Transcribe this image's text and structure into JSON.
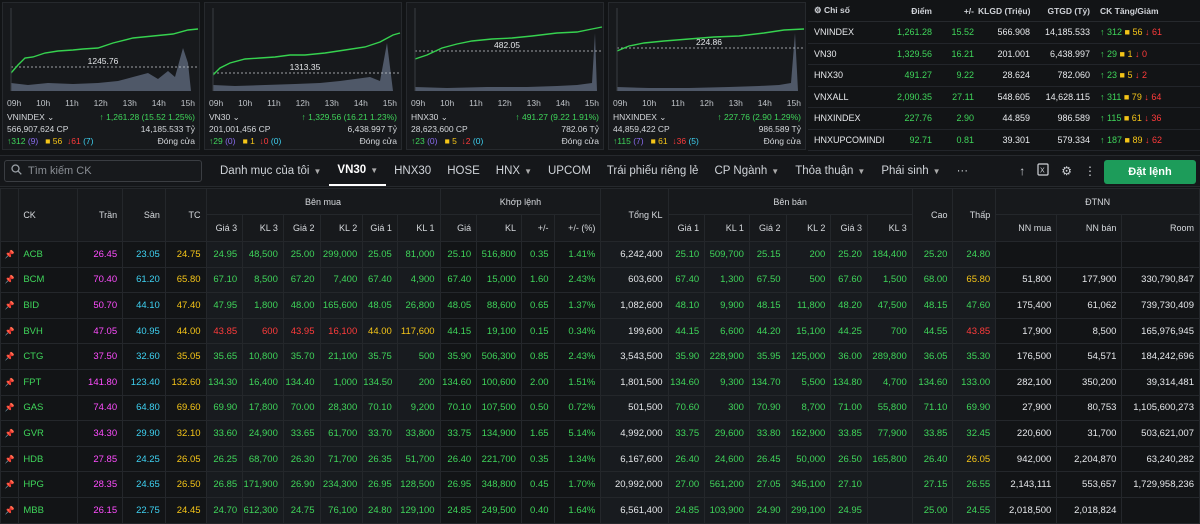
{
  "charts": [
    {
      "ref": "1245.76",
      "index_name": "VNINDEX",
      "change_text": "1,261.28 (15.52 1.25%)",
      "volume": "566,907,624 CP",
      "value": "14,185.533 Tỷ",
      "up": "312",
      "ceil": "9",
      "flat": "56",
      "down": "61",
      "floor": "7",
      "status": "Đóng cửa",
      "times": [
        "09h",
        "10h",
        "11h",
        "12h",
        "13h",
        "14h",
        "15h"
      ]
    },
    {
      "ref": "1313.35",
      "index_name": "VN30",
      "change_text": "1,329.56 (16.21 1.23%)",
      "volume": "201,001,456 CP",
      "value": "6,438.997 Tỷ",
      "up": "29",
      "ceil": "0",
      "flat": "1",
      "down": "0",
      "floor": "0",
      "status": "Đóng cửa",
      "times": [
        "09h",
        "10h",
        "11h",
        "12h",
        "13h",
        "14h",
        "15h"
      ]
    },
    {
      "ref": "482.05",
      "index_name": "HNX30",
      "change_text": "491.27 (9.22 1.91%)",
      "volume": "28,623,600 CP",
      "value": "782.06 Tỷ",
      "up": "23",
      "ceil": "0",
      "flat": "5",
      "down": "2",
      "floor": "0",
      "status": "Đóng cửa",
      "times": [
        "09h",
        "10h",
        "11h",
        "12h",
        "13h",
        "14h",
        "15h"
      ]
    },
    {
      "ref": "224.86",
      "index_name": "HNXINDEX",
      "change_text": "227.76 (2.90 1.29%)",
      "volume": "44,859,422 CP",
      "value": "986.589 Tỷ",
      "up": "115",
      "ceil": "7",
      "flat": "61",
      "down": "36",
      "floor": "5",
      "status": "Đóng cửa",
      "times": [
        "09h",
        "10h",
        "11h",
        "12h",
        "13h",
        "14h",
        "15h"
      ]
    }
  ],
  "index_table": {
    "headers": [
      "Chỉ số",
      "Điểm",
      "+/-",
      "KLGD (Triệu)",
      "GTGD (Tỷ)",
      "CK Tăng/Giảm"
    ],
    "rows": [
      {
        "name": "VNINDEX",
        "point": "1,261.28",
        "change": "15.52",
        "vol": "566.908",
        "val": "14,185.533",
        "up": "312",
        "flat": "56",
        "down": "61"
      },
      {
        "name": "VN30",
        "point": "1,329.56",
        "change": "16.21",
        "vol": "201.001",
        "val": "6,438.997",
        "up": "29",
        "flat": "1",
        "down": "0"
      },
      {
        "name": "HNX30",
        "point": "491.27",
        "change": "9.22",
        "vol": "28.624",
        "val": "782.060",
        "up": "23",
        "flat": "5",
        "down": "2"
      },
      {
        "name": "VNXALL",
        "point": "2,090.35",
        "change": "27.11",
        "vol": "548.605",
        "val": "14,628.115",
        "up": "311",
        "flat": "79",
        "down": "64"
      },
      {
        "name": "HNXINDEX",
        "point": "227.76",
        "change": "2.90",
        "vol": "44.859",
        "val": "986.589",
        "up": "115",
        "flat": "61",
        "down": "36"
      },
      {
        "name": "HNXUPCOMINDI",
        "point": "92.71",
        "change": "0.81",
        "vol": "39.301",
        "val": "579.334",
        "up": "187",
        "flat": "89",
        "down": "62"
      }
    ]
  },
  "toolbar": {
    "search_placeholder": "Tìm kiếm CK",
    "tabs": [
      {
        "label": "Danh mục của tôi",
        "chev": "⌄"
      },
      {
        "label": "VN30",
        "chev": "⌄"
      },
      {
        "label": "HNX30",
        "chev": ""
      },
      {
        "label": "HOSE",
        "chev": ""
      },
      {
        "label": "HNX",
        "chev": "⌄"
      },
      {
        "label": "UPCOM",
        "chev": ""
      },
      {
        "label": "Trái phiếu riêng lẻ",
        "chev": ""
      },
      {
        "label": "CP Ngành",
        "chev": "⌄"
      },
      {
        "label": "Thỏa thuận",
        "chev": "⌄"
      },
      {
        "label": "Phái sinh",
        "chev": "⌄"
      },
      {
        "label": "···",
        "chev": ""
      }
    ],
    "order_button": "Đặt lệnh"
  },
  "board": {
    "group_headers": {
      "ck": "CK",
      "tran": "Trần",
      "san": "Sàn",
      "tc": "TC",
      "ben_mua": "Bên mua",
      "khop_lenh": "Khớp lệnh",
      "tong_kl": "Tổng KL",
      "ben_ban": "Bên bán",
      "cao": "Cao",
      "thap": "Thấp",
      "dtnn": "ĐTNN"
    },
    "sub_headers": [
      "Giá 3",
      "KL 3",
      "Giá 2",
      "KL 2",
      "Giá 1",
      "KL 1",
      "Giá",
      "KL",
      "+/-",
      "+/- (%)",
      "Giá 1",
      "KL 1",
      "Giá 2",
      "KL 2",
      "Giá 3",
      "KL 3",
      "NN mua",
      "NN bán",
      "Room"
    ],
    "rows": [
      [
        "ACB",
        "26.45",
        "23.05",
        "24.75",
        "24.95",
        "48,500",
        "25.00",
        "299,000",
        "25.05",
        "81,000",
        "25.10",
        "516,800",
        "0.35",
        "1.41%",
        "6,242,400",
        "25.10",
        "509,700",
        "25.15",
        "200",
        "25.20",
        "184,400",
        "25.20",
        "24.80",
        "",
        "",
        ""
      ],
      [
        "BCM",
        "70.40",
        "61.20",
        "65.80",
        "67.10",
        "8,500",
        "67.20",
        "7,400",
        "67.40",
        "4,900",
        "67.40",
        "15,000",
        "1.60",
        "2.43%",
        "603,600",
        "67.40",
        "1,300",
        "67.50",
        "500",
        "67.60",
        "1,500",
        "68.00",
        "65.80",
        "51,800",
        "177,900",
        "330,790,847"
      ],
      [
        "BID",
        "50.70",
        "44.10",
        "47.40",
        "47.95",
        "1,800",
        "48.00",
        "165,600",
        "48.05",
        "26,800",
        "48.05",
        "88,600",
        "0.65",
        "1.37%",
        "1,082,600",
        "48.10",
        "9,900",
        "48.15",
        "11,800",
        "48.20",
        "47,500",
        "48.15",
        "47.60",
        "175,400",
        "61,062",
        "739,730,409"
      ],
      [
        "BVH",
        "47.05",
        "40.95",
        "44.00",
        "43.85",
        "600",
        "43.95",
        "16,100",
        "44.00",
        "117,600",
        "44.15",
        "19,100",
        "0.15",
        "0.34%",
        "199,600",
        "44.15",
        "6,600",
        "44.20",
        "15,100",
        "44.25",
        "700",
        "44.55",
        "43.85",
        "17,900",
        "8,500",
        "165,976,945"
      ],
      [
        "CTG",
        "37.50",
        "32.60",
        "35.05",
        "35.65",
        "10,800",
        "35.70",
        "21,100",
        "35.75",
        "500",
        "35.90",
        "506,300",
        "0.85",
        "2.43%",
        "3,543,500",
        "35.90",
        "228,900",
        "35.95",
        "125,000",
        "36.00",
        "289,800",
        "36.05",
        "35.30",
        "176,500",
        "54,571",
        "184,242,696"
      ],
      [
        "FPT",
        "141.80",
        "123.40",
        "132.60",
        "134.30",
        "16,400",
        "134.40",
        "1,000",
        "134.50",
        "200",
        "134.60",
        "100,600",
        "2.00",
        "1.51%",
        "1,801,500",
        "134.60",
        "9,300",
        "134.70",
        "5,500",
        "134.80",
        "4,700",
        "134.60",
        "133.00",
        "282,100",
        "350,200",
        "39,314,481"
      ],
      [
        "GAS",
        "74.40",
        "64.80",
        "69.60",
        "69.90",
        "17,800",
        "70.00",
        "28,300",
        "70.10",
        "9,200",
        "70.10",
        "107,500",
        "0.50",
        "0.72%",
        "501,500",
        "70.60",
        "300",
        "70.90",
        "8,700",
        "71.00",
        "55,800",
        "71.10",
        "69.90",
        "27,900",
        "80,753",
        "1,105,600,273"
      ],
      [
        "GVR",
        "34.30",
        "29.90",
        "32.10",
        "33.60",
        "24,900",
        "33.65",
        "61,700",
        "33.70",
        "33,800",
        "33.75",
        "134,900",
        "1.65",
        "5.14%",
        "4,992,000",
        "33.75",
        "29,600",
        "33.80",
        "162,900",
        "33.85",
        "77,900",
        "33.85",
        "32.45",
        "220,600",
        "31,700",
        "503,621,007"
      ],
      [
        "HDB",
        "27.85",
        "24.25",
        "26.05",
        "26.25",
        "68,700",
        "26.30",
        "71,700",
        "26.35",
        "51,700",
        "26.40",
        "221,700",
        "0.35",
        "1.34%",
        "6,167,600",
        "26.40",
        "24,600",
        "26.45",
        "50,000",
        "26.50",
        "165,800",
        "26.40",
        "26.05",
        "942,000",
        "2,204,870",
        "63,240,282"
      ],
      [
        "HPG",
        "28.35",
        "24.65",
        "26.50",
        "26.85",
        "171,900",
        "26.90",
        "234,300",
        "26.95",
        "128,500",
        "26.95",
        "348,800",
        "0.45",
        "1.70%",
        "20,992,000",
        "27.00",
        "561,200",
        "27.05",
        "345,100",
        "27.10",
        "",
        "27.15",
        "26.55",
        "2,143,111",
        "553,657",
        "1,729,958,236"
      ],
      [
        "MBB",
        "26.15",
        "22.75",
        "24.45",
        "24.70",
        "612,300",
        "24.75",
        "76,100",
        "24.80",
        "129,100",
        "24.85",
        "249,500",
        "0.40",
        "1.64%",
        "6,561,400",
        "24.85",
        "103,900",
        "24.90",
        "299,100",
        "24.95",
        "",
        "25.00",
        "24.55",
        "2,018,500",
        "2,018,824",
        ""
      ]
    ]
  }
}
